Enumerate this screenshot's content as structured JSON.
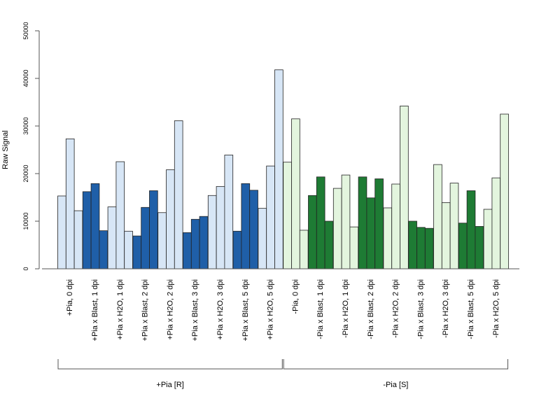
{
  "chart_data": {
    "type": "bar",
    "ylabel": "Raw Signal",
    "ylim": [
      0,
      50000
    ],
    "yticks": [
      0,
      10000,
      20000,
      30000,
      40000,
      50000
    ],
    "grid": false,
    "legend": "none",
    "categories": [
      "+Pia, 0 dpi",
      "+Pia x Blast, 1 dpi",
      "+Pia x H2O, 1 dpi",
      "+Pia x Blast, 2 dpi",
      "+Pia x H2O, 2 dpi",
      "+Pia x Blast, 3 dpi",
      "+Pia x H2O, 3 dpi",
      "+Pia x Blast, 5 dpi",
      "+Pia x H2O, 5 dpi",
      "-Pia, 0 dpi",
      "-Pia x Blast, 1 dpi",
      "-Pia x H2O, 1 dpi",
      "-Pia x Blast, 2 dpi",
      "-Pia x H2O, 2 dpi",
      "-Pia x Blast, 3 dpi",
      "-Pia x H2O, 3 dpi",
      "-Pia x Blast, 5 dpi",
      "-Pia x H2O, 5 dpi"
    ],
    "replicate_values": [
      [
        15300,
        27300,
        12200
      ],
      [
        16200,
        17900,
        8000
      ],
      [
        13000,
        22500,
        7900
      ],
      [
        6900,
        12900,
        16400
      ],
      [
        11800,
        20800,
        31100
      ],
      [
        7600,
        10400,
        11000
      ],
      [
        15400,
        17300,
        23900
      ],
      [
        7900,
        17900,
        16500
      ],
      [
        12700,
        21600,
        41800
      ],
      [
        22400,
        31500,
        8100
      ],
      [
        15400,
        19300,
        10000
      ],
      [
        16900,
        19700,
        8800
      ],
      [
        19300,
        14900,
        18900
      ],
      [
        12800,
        17800,
        34200
      ],
      [
        10000,
        8700,
        8500
      ],
      [
        21900,
        13900,
        18000
      ],
      [
        9600,
        16400,
        8900
      ],
      [
        12500,
        19100,
        32500
      ]
    ],
    "colors": {
      "pia_plus_blast": "#1f5fa8",
      "pia_plus_h2o": "#d7e6f6",
      "pia_minus_blast": "#1e7b34",
      "pia_minus_h2o": "#e3f5de",
      "axis": "#555555",
      "bar_outline": "#222222"
    },
    "groups": [
      {
        "label": "+Pia [R]",
        "first": 0,
        "last": 8
      },
      {
        "label": "-Pia [S]",
        "first": 9,
        "last": 17
      }
    ],
    "ytick_labels": [
      "0",
      "10000",
      "20000",
      "30000",
      "40000",
      "50000"
    ]
  }
}
